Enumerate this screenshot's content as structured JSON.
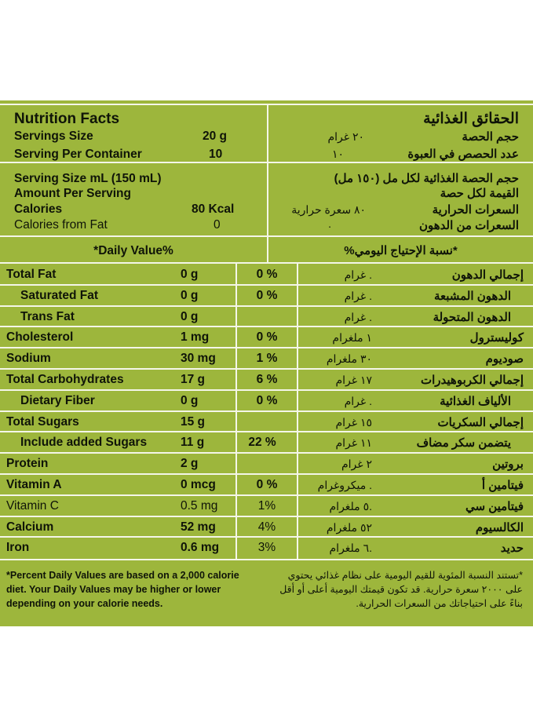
{
  "header": {
    "title_en": "Nutrition Facts",
    "title_ar": "الحقائق الغذائية",
    "servings_size": {
      "label_en": "Servings Size",
      "value_en": "20 g",
      "label_ar": "حجم الحصة",
      "value_ar": "٢٠ غرام"
    },
    "serving_per_container": {
      "label_en": "Serving Per Container",
      "value_en": "10",
      "label_ar": "عدد الحصص في العبوة",
      "value_ar": "١٠"
    }
  },
  "serving_block": {
    "serving_size_ml": {
      "label_en": "Serving Size mL (150 mL)",
      "label_ar": "حجم الحصة الغذائية لكل مل (١٥٠ مل)"
    },
    "amount_per_serving": {
      "label_en": "Amount Per Serving",
      "label_ar": "القيمة لكل حصة"
    },
    "calories": {
      "label_en": "Calories",
      "value_en": "80 Kcal",
      "label_ar": "السعرات الحرارية",
      "value_ar": "٨٠ سعرة حرارية"
    },
    "calories_from_fat": {
      "label_en": "Calories from Fat",
      "value_en": "0",
      "label_ar": "السعرات من الدهون",
      "value_ar": "."
    }
  },
  "dv_header": {
    "en": "*Daily Value%",
    "ar": "*نسبة الإحتياج اليومي%"
  },
  "rows": [
    {
      "name_en": "Total Fat",
      "amount_en": "0 g",
      "dv": "0 %",
      "amount_ar": ". غرام",
      "name_ar": "إجمالي الدهون"
    },
    {
      "name_en": "Saturated Fat",
      "amount_en": "0 g",
      "dv": "0 %",
      "amount_ar": ". غرام",
      "name_ar": "الدهون المشبعة"
    },
    {
      "name_en": "Trans Fat",
      "amount_en": "0 g",
      "dv": "",
      "amount_ar": ". غرام",
      "name_ar": "الدهون المتحولة"
    },
    {
      "name_en": "Cholesterol",
      "amount_en": "1 mg",
      "dv": "0 %",
      "amount_ar": "١ ملغرام",
      "name_ar": "كوليسترول"
    },
    {
      "name_en": "Sodium",
      "amount_en": "30 mg",
      "dv": "1 %",
      "amount_ar": "٣٠ ملغرام",
      "name_ar": "صوديوم"
    },
    {
      "name_en": "Total Carbohydrates",
      "amount_en": "17 g",
      "dv": "6 %",
      "amount_ar": "١٧ غرام",
      "name_ar": "إجمالي الكربوهيدرات"
    },
    {
      "name_en": "Dietary Fiber",
      "amount_en": "0 g",
      "dv": "0 %",
      "amount_ar": ". غرام",
      "name_ar": "الألياف الغذائية"
    },
    {
      "name_en": "Total Sugars",
      "amount_en": "15 g",
      "dv": "",
      "amount_ar": "١٥ غرام",
      "name_ar": "إجمالي السكريات"
    },
    {
      "name_en": "Include added Sugars",
      "amount_en": "11 g",
      "dv": "22 %",
      "amount_ar": "١١ غرام",
      "name_ar": "يتضمن سكر مضاف"
    },
    {
      "name_en": "Protein",
      "amount_en": "2 g",
      "dv": "",
      "amount_ar": "٢ غرام",
      "name_ar": "بروتين"
    },
    {
      "name_en": "Vitamin A",
      "amount_en": "0 mcg",
      "dv": "0 %",
      "amount_ar": ". ميكروغرام",
      "name_ar": "فيتامين أ"
    },
    {
      "name_en": "Vitamin C",
      "amount_en": "0.5 mg",
      "dv": "1%",
      "amount_ar": ".٥ ملغرام",
      "name_ar": "فيتامين سي"
    },
    {
      "name_en": "Calcium",
      "amount_en": "52 mg",
      "dv": "4%",
      "amount_ar": "٥٢ ملغرام",
      "name_ar": "الكالسيوم"
    },
    {
      "name_en": "Iron",
      "amount_en": "0.6 mg",
      "dv": "3%",
      "amount_ar": ".٦ ملغرام",
      "name_ar": "حديد"
    }
  ],
  "footnote": {
    "en": "*Percent Daily Values are based on a 2,000 calorie diet. Your Daily Values may be higher or lower depending on your calorie needs.",
    "ar": "*تستند النسبة المئوية للقيم اليومية على نظام غذائي يحتوي على ٢٠٠٠ سعرة حرارية. قد تكون قيمتك اليومية أعلى أو أقل بناءً على احتياجاتك من السعرات الحرارية."
  }
}
